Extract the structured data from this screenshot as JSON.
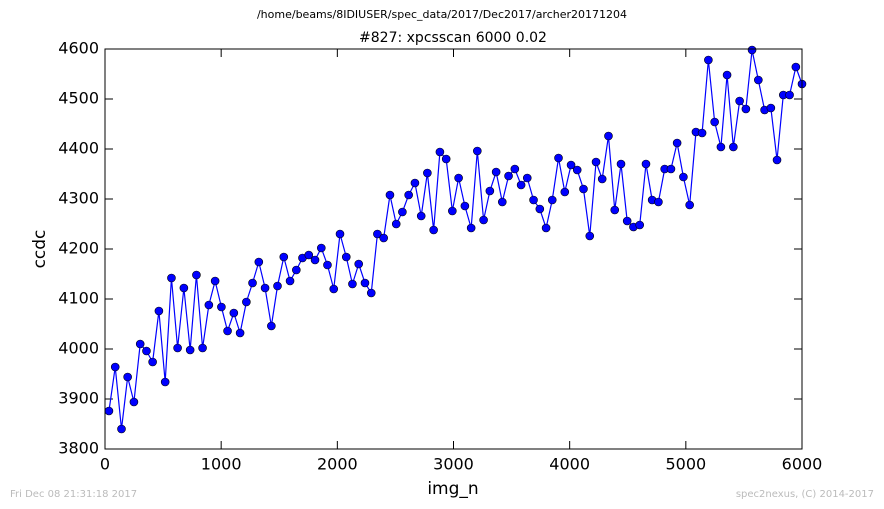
{
  "chart_data": {
    "type": "line",
    "suptitle": "/home/beams/8IDIUSER/spec_data/2017/Dec2017/archer20171204",
    "title": "#827: xpcsscan 6000 0.02",
    "xlabel": "img_n",
    "ylabel": "ccdc",
    "footer_left": "Fri Dec 08 21:31:18 2017",
    "footer_right": "spec2nexus, (C) 2014-2017",
    "xlim": [
      0,
      6000
    ],
    "ylim": [
      3800,
      4600
    ],
    "xticks": [
      0,
      1000,
      2000,
      3000,
      4000,
      5000,
      6000
    ],
    "yticks": [
      3800,
      3900,
      4000,
      4100,
      4200,
      4300,
      4400,
      4500,
      4600
    ],
    "grid": false,
    "markers": true,
    "x": [
      34,
      88,
      142,
      195,
      249,
      303,
      357,
      410,
      464,
      518,
      572,
      625,
      679,
      733,
      787,
      840,
      894,
      948,
      1002,
      1055,
      1109,
      1163,
      1217,
      1270,
      1324,
      1378,
      1432,
      1485,
      1539,
      1593,
      1647,
      1700,
      1754,
      1808,
      1862,
      1915,
      1969,
      2023,
      2077,
      2130,
      2184,
      2238,
      2292,
      2345,
      2399,
      2453,
      2507,
      2560,
      2614,
      2668,
      2722,
      2775,
      2829,
      2883,
      2937,
      2990,
      3044,
      3098,
      3152,
      3205,
      3259,
      3313,
      3367,
      3420,
      3474,
      3528,
      3582,
      3635,
      3689,
      3743,
      3797,
      3850,
      3904,
      3958,
      4012,
      4065,
      4119,
      4173,
      4227,
      4280,
      4334,
      4388,
      4442,
      4495,
      4549,
      4603,
      4657,
      4710,
      4764,
      4818,
      4872,
      4925,
      4979,
      5033,
      5087,
      5140,
      5194,
      5248,
      5302,
      5355,
      5409,
      5463,
      5517,
      5570,
      5624,
      5678,
      5732,
      5785,
      5839,
      5893,
      5947,
      6000
    ],
    "series": [
      {
        "name": "ccdc",
        "color": "#0000ff",
        "values": [
          3876,
          3964,
          3840,
          3944,
          3894,
          4010,
          3996,
          3974,
          4076,
          3934,
          4142,
          4002,
          4122,
          3998,
          4148,
          4002,
          4088,
          4136,
          4084,
          4036,
          4072,
          4032,
          4094,
          4132,
          4174,
          4122,
          4046,
          4126,
          4184,
          4136,
          4158,
          4182,
          4188,
          4178,
          4202,
          4168,
          4120,
          4230,
          4184,
          4130,
          4170,
          4132,
          4112,
          4230,
          4222,
          4308,
          4250,
          4274,
          4308,
          4332,
          4266,
          4352,
          4238,
          4394,
          4380,
          4276,
          4342,
          4286,
          4242,
          4396,
          4258,
          4316,
          4354,
          4294,
          4346,
          4360,
          4328,
          4342,
          4298,
          4280,
          4242,
          4298,
          4382,
          4314,
          4368,
          4358,
          4320,
          4226,
          4374,
          4340,
          4426,
          4278,
          4370,
          4256,
          4244,
          4248,
          4370,
          4298,
          4294,
          4360,
          4360,
          4412,
          4344,
          4288,
          4434,
          4432,
          4578,
          4454,
          4404,
          4548,
          4404,
          4496,
          4480,
          4598,
          4538,
          4478,
          4482,
          4378,
          4508,
          4508,
          4564,
          4530
        ]
      }
    ]
  }
}
